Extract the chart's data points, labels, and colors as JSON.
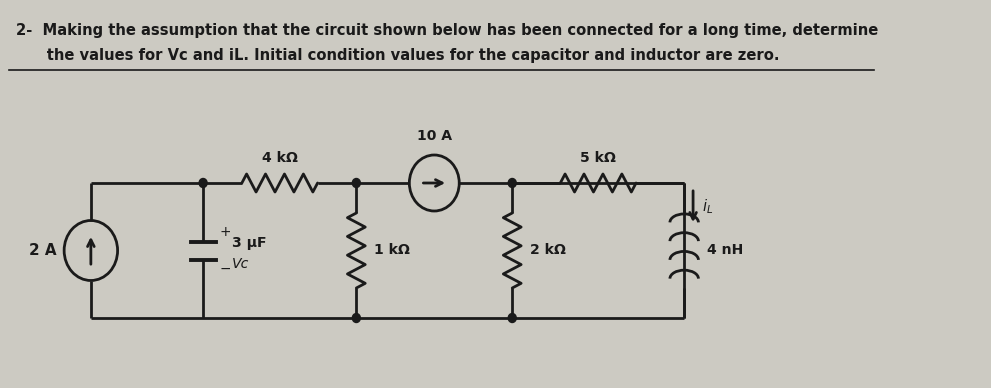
{
  "title_line1": "2-  Making the assumption that the circuit shown below has been connected for a long time, determine",
  "title_line2": "      the values for Vc and iL. Initial condition values for the capacitor and inductor are zero.",
  "bg_color": "#cccac2",
  "text_color": "#1a1a1a",
  "font_size": 11.5,
  "circuit": {
    "current_source_label": "2 A",
    "capacitor_label": "3 μF",
    "vc_label": "Vc",
    "r1_label": "4 kΩ",
    "current_src2_label": "10 A",
    "r2_label": "1 kΩ",
    "r3_label": "5 kΩ",
    "r4_label": "2 kΩ",
    "inductor_label": "4 nH",
    "il_label": "iL"
  }
}
